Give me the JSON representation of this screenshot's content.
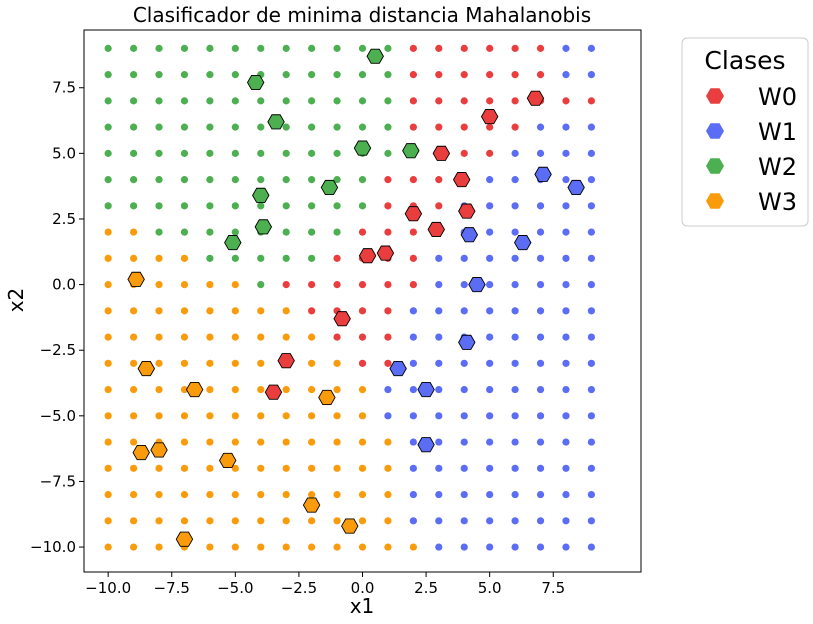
{
  "chart_data": {
    "type": "scatter",
    "title": "Clasificador de minima distancia Mahalanobis",
    "xlabel": "x1",
    "ylabel": "x2",
    "xlim": [
      -10.95,
      10.95
    ],
    "ylim": [
      -10.95,
      9.7
    ],
    "xticks": [
      -10.0,
      -7.5,
      -5.0,
      -2.5,
      0.0,
      2.5,
      5.0,
      7.5
    ],
    "yticks": [
      -10.0,
      -7.5,
      -5.0,
      -2.5,
      0.0,
      2.5,
      5.0,
      7.5
    ],
    "xtick_labels": [
      "−10.0",
      "−7.5",
      "−5.0",
      "−2.5",
      "0.0",
      "2.5",
      "5.0",
      "7.5"
    ],
    "ytick_labels": [
      "−10.0",
      "−7.5",
      "−5.0",
      "−2.5",
      "0.0",
      "2.5",
      "5.0",
      "7.5"
    ],
    "grid": false,
    "legend": {
      "title": "Clases",
      "placement": "outside-right",
      "entries": [
        "W0",
        "W1",
        "W2",
        "W3"
      ]
    },
    "classes": [
      {
        "name": "W0",
        "color": "#ea3d3d"
      },
      {
        "name": "W1",
        "color": "#5b6cf5"
      },
      {
        "name": "W2",
        "color": "#4caf50"
      },
      {
        "name": "W3",
        "color": "#fa9b0b"
      }
    ],
    "grid_points": {
      "x_range": [
        -10,
        9
      ],
      "y_range": [
        -10,
        9
      ],
      "step": 1,
      "description": "dense grid points colored by predicted class"
    },
    "training_points": [
      {
        "class": "W0",
        "points": [
          [
            0.2,
            1.1
          ],
          [
            0.9,
            1.2
          ],
          [
            2.0,
            2.7
          ],
          [
            2.9,
            2.1
          ],
          [
            4.1,
            2.8
          ],
          [
            3.9,
            4.0
          ],
          [
            3.1,
            5.0
          ],
          [
            5.0,
            6.4
          ],
          [
            6.8,
            7.1
          ],
          [
            -0.8,
            -1.3
          ],
          [
            -3.0,
            -2.9
          ],
          [
            -3.5,
            -4.1
          ]
        ]
      },
      {
        "class": "W1",
        "points": [
          [
            7.1,
            4.2
          ],
          [
            8.4,
            3.7
          ],
          [
            6.3,
            1.6
          ],
          [
            4.2,
            1.9
          ],
          [
            4.5,
            0.0
          ],
          [
            4.1,
            -2.2
          ],
          [
            1.4,
            -3.2
          ],
          [
            2.5,
            -4.0
          ],
          [
            2.5,
            -6.1
          ]
        ]
      },
      {
        "class": "W2",
        "points": [
          [
            0.5,
            8.7
          ],
          [
            -4.2,
            7.7
          ],
          [
            -3.4,
            6.2
          ],
          [
            0.0,
            5.2
          ],
          [
            1.9,
            5.1
          ],
          [
            -1.3,
            3.7
          ],
          [
            -4.0,
            3.4
          ],
          [
            -3.9,
            2.2
          ],
          [
            -5.1,
            1.6
          ]
        ]
      },
      {
        "class": "W3",
        "points": [
          [
            -8.9,
            0.2
          ],
          [
            -8.5,
            -3.2
          ],
          [
            -6.6,
            -4.0
          ],
          [
            -1.4,
            -4.3
          ],
          [
            -8.7,
            -6.4
          ],
          [
            -8.0,
            -6.3
          ],
          [
            -5.3,
            -6.7
          ],
          [
            -2.0,
            -8.4
          ],
          [
            -0.5,
            -9.2
          ],
          [
            -7.0,
            -9.7
          ]
        ]
      }
    ]
  }
}
